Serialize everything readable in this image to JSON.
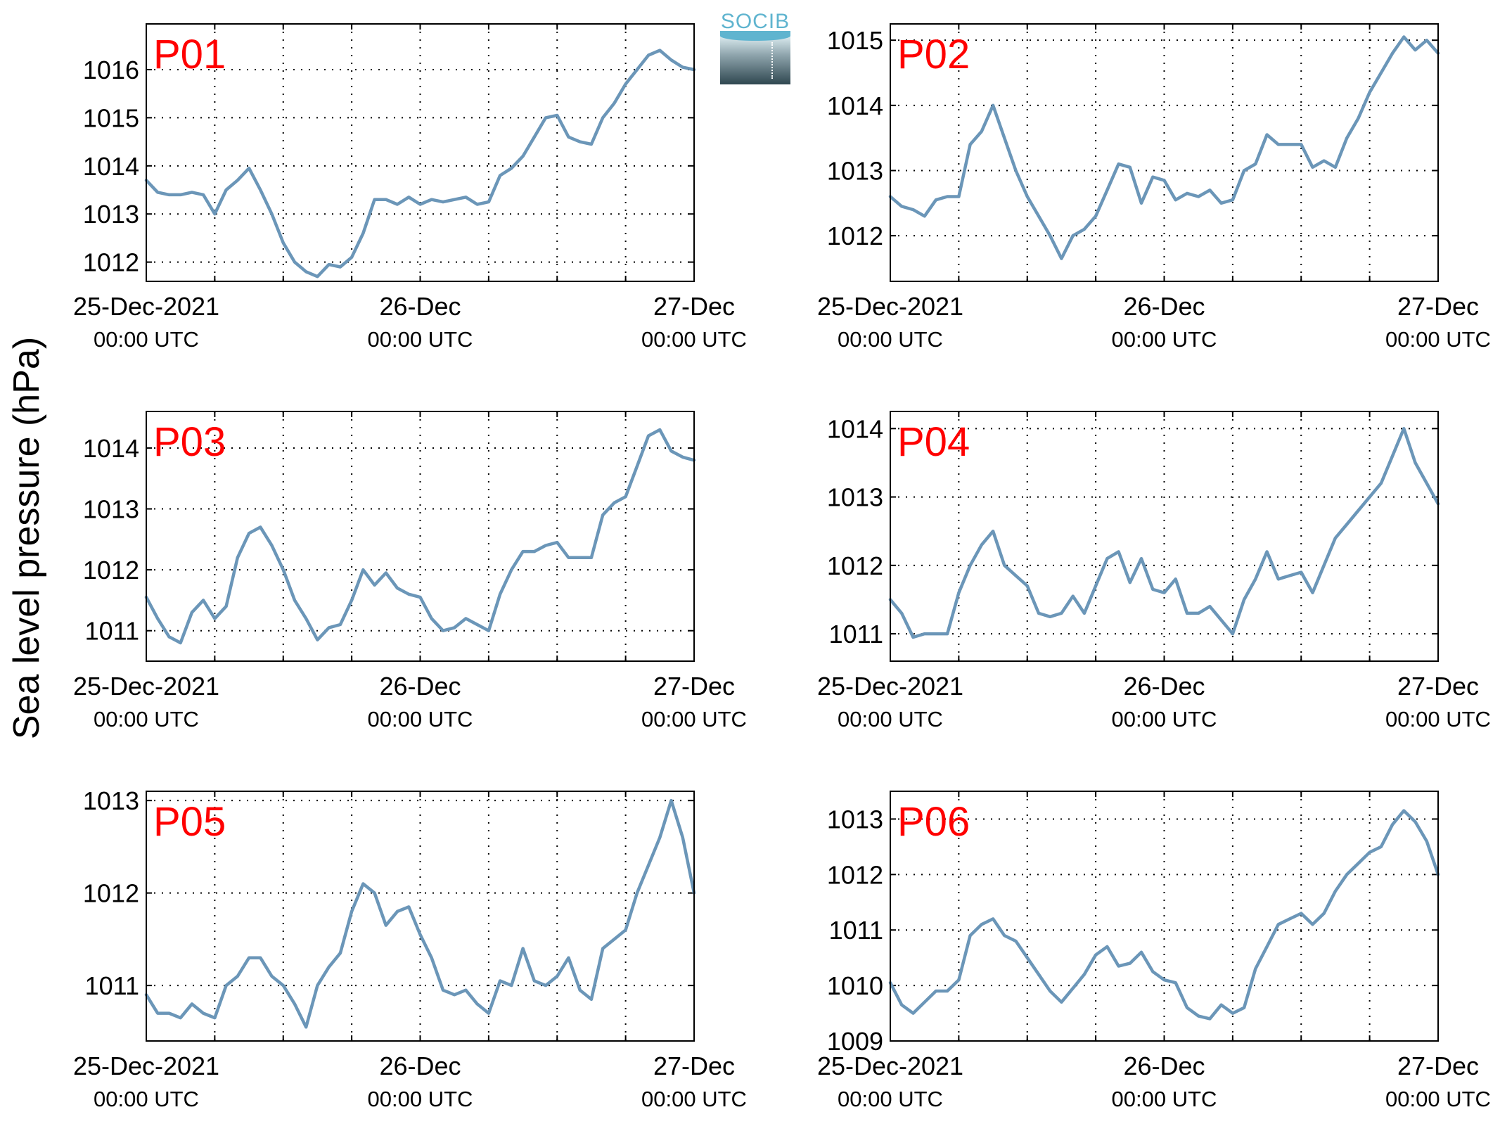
{
  "ylabel": "Sea level pressure (hPa)",
  "logo_text": "SOCIB",
  "colors": {
    "line": "#6b96b8",
    "panel_label": "#ff0000",
    "axis": "#000000",
    "grid": "#000000"
  },
  "chart_data": [
    {
      "type": "line",
      "title": "P01",
      "xlim": [
        0,
        48
      ],
      "xticks": [
        {
          "x": 0,
          "date": "25-Dec-2021",
          "time": "00:00 UTC"
        },
        {
          "x": 24,
          "date": "26-Dec",
          "time": "00:00 UTC"
        },
        {
          "x": 48,
          "date": "27-Dec",
          "time": "00:00 UTC"
        }
      ],
      "xgrid": [
        6,
        12,
        18,
        24,
        30,
        36,
        42
      ],
      "ylim": [
        1011.6,
        1016.95
      ],
      "yticks": [
        1012,
        1013,
        1014,
        1015,
        1016
      ],
      "x": [
        0,
        1,
        2,
        3,
        4,
        5,
        6,
        7,
        8,
        9,
        10,
        11,
        12,
        13,
        14,
        15,
        16,
        17,
        18,
        19,
        20,
        21,
        22,
        23,
        24,
        25,
        26,
        27,
        28,
        29,
        30,
        31,
        32,
        33,
        34,
        35,
        36,
        37,
        38,
        39,
        40,
        41,
        42,
        43,
        44,
        45,
        46,
        47,
        48
      ],
      "y": [
        1013.7,
        1013.45,
        1013.4,
        1013.4,
        1013.45,
        1013.4,
        1013.0,
        1013.5,
        1013.7,
        1013.95,
        1013.5,
        1013.0,
        1012.4,
        1012.0,
        1011.8,
        1011.7,
        1011.95,
        1011.9,
        1012.1,
        1012.6,
        1013.3,
        1013.3,
        1013.2,
        1013.35,
        1013.2,
        1013.3,
        1013.25,
        1013.3,
        1013.35,
        1013.2,
        1013.25,
        1013.8,
        1013.95,
        1014.2,
        1014.6,
        1015.0,
        1015.05,
        1014.6,
        1014.5,
        1014.45,
        1015.0,
        1015.3,
        1015.7,
        1016.0,
        1016.3,
        1016.4,
        1016.2,
        1016.05,
        1016.0
      ]
    },
    {
      "type": "line",
      "title": "P02",
      "xlim": [
        0,
        48
      ],
      "xticks": [
        {
          "x": 0,
          "date": "25-Dec-2021",
          "time": "00:00 UTC"
        },
        {
          "x": 24,
          "date": "26-Dec",
          "time": "00:00 UTC"
        },
        {
          "x": 48,
          "date": "27-Dec",
          "time": "00:00 UTC"
        }
      ],
      "xgrid": [
        6,
        12,
        18,
        24,
        30,
        36,
        42
      ],
      "ylim": [
        1011.3,
        1015.25
      ],
      "yticks": [
        1012,
        1013,
        1014,
        1015
      ],
      "x": [
        0,
        1,
        2,
        3,
        4,
        5,
        6,
        7,
        8,
        9,
        10,
        11,
        12,
        13,
        14,
        15,
        16,
        17,
        18,
        19,
        20,
        21,
        22,
        23,
        24,
        25,
        26,
        27,
        28,
        29,
        30,
        31,
        32,
        33,
        34,
        35,
        36,
        37,
        38,
        39,
        40,
        41,
        42,
        43,
        44,
        45,
        46,
        47,
        48
      ],
      "y": [
        1012.6,
        1012.45,
        1012.4,
        1012.3,
        1012.55,
        1012.6,
        1012.6,
        1013.4,
        1013.6,
        1014.0,
        1013.5,
        1013.0,
        1012.6,
        1012.3,
        1012.0,
        1011.65,
        1012.0,
        1012.1,
        1012.3,
        1012.7,
        1013.1,
        1013.05,
        1012.5,
        1012.9,
        1012.85,
        1012.55,
        1012.65,
        1012.6,
        1012.7,
        1012.5,
        1012.55,
        1013.0,
        1013.1,
        1013.55,
        1013.4,
        1013.4,
        1013.4,
        1013.05,
        1013.15,
        1013.05,
        1013.5,
        1013.8,
        1014.2,
        1014.5,
        1014.8,
        1015.05,
        1014.85,
        1015.0,
        1014.8
      ]
    },
    {
      "type": "line",
      "title": "P03",
      "xlim": [
        0,
        48
      ],
      "xticks": [
        {
          "x": 0,
          "date": "25-Dec-2021",
          "time": "00:00 UTC"
        },
        {
          "x": 24,
          "date": "26-Dec",
          "time": "00:00 UTC"
        },
        {
          "x": 48,
          "date": "27-Dec",
          "time": "00:00 UTC"
        }
      ],
      "xgrid": [
        6,
        12,
        18,
        24,
        30,
        36,
        42
      ],
      "ylim": [
        1010.5,
        1014.6
      ],
      "yticks": [
        1011,
        1012,
        1013,
        1014
      ],
      "x": [
        0,
        1,
        2,
        3,
        4,
        5,
        6,
        7,
        8,
        9,
        10,
        11,
        12,
        13,
        14,
        15,
        16,
        17,
        18,
        19,
        20,
        21,
        22,
        23,
        24,
        25,
        26,
        27,
        28,
        29,
        30,
        31,
        32,
        33,
        34,
        35,
        36,
        37,
        38,
        39,
        40,
        41,
        42,
        43,
        44,
        45,
        46,
        47,
        48
      ],
      "y": [
        1011.55,
        1011.2,
        1010.9,
        1010.8,
        1011.3,
        1011.5,
        1011.2,
        1011.4,
        1012.2,
        1012.6,
        1012.7,
        1012.4,
        1012.0,
        1011.5,
        1011.2,
        1010.85,
        1011.05,
        1011.1,
        1011.5,
        1012.0,
        1011.75,
        1011.95,
        1011.7,
        1011.6,
        1011.55,
        1011.2,
        1011.0,
        1011.05,
        1011.2,
        1011.1,
        1011.0,
        1011.6,
        1012.0,
        1012.3,
        1012.3,
        1012.4,
        1012.45,
        1012.2,
        1012.2,
        1012.2,
        1012.9,
        1013.1,
        1013.2,
        1013.7,
        1014.2,
        1014.3,
        1013.95,
        1013.85,
        1013.8
      ]
    },
    {
      "type": "line",
      "title": "P04",
      "xlim": [
        0,
        48
      ],
      "xticks": [
        {
          "x": 0,
          "date": "25-Dec-2021",
          "time": "00:00 UTC"
        },
        {
          "x": 24,
          "date": "26-Dec",
          "time": "00:00 UTC"
        },
        {
          "x": 48,
          "date": "27-Dec",
          "time": "00:00 UTC"
        }
      ],
      "xgrid": [
        6,
        12,
        18,
        24,
        30,
        36,
        42
      ],
      "ylim": [
        1010.6,
        1014.25
      ],
      "yticks": [
        1011,
        1012,
        1013,
        1014
      ],
      "x": [
        0,
        1,
        2,
        3,
        4,
        5,
        6,
        7,
        8,
        9,
        10,
        11,
        12,
        13,
        14,
        15,
        16,
        17,
        18,
        19,
        20,
        21,
        22,
        23,
        24,
        25,
        26,
        27,
        28,
        29,
        30,
        31,
        32,
        33,
        34,
        35,
        36,
        37,
        38,
        39,
        40,
        41,
        42,
        43,
        44,
        45,
        46,
        47,
        48
      ],
      "y": [
        1011.5,
        1011.3,
        1010.95,
        1011.0,
        1011.0,
        1011.0,
        1011.6,
        1012.0,
        1012.3,
        1012.5,
        1012.0,
        1011.85,
        1011.7,
        1011.3,
        1011.25,
        1011.3,
        1011.55,
        1011.3,
        1011.7,
        1012.1,
        1012.2,
        1011.75,
        1012.1,
        1011.65,
        1011.6,
        1011.8,
        1011.3,
        1011.3,
        1011.4,
        1011.2,
        1011.0,
        1011.5,
        1011.8,
        1012.2,
        1011.8,
        1011.85,
        1011.9,
        1011.6,
        1012.0,
        1012.4,
        1012.6,
        1012.8,
        1013.0,
        1013.2,
        1013.6,
        1014.0,
        1013.5,
        1013.2,
        1012.9
      ]
    },
    {
      "type": "line",
      "title": "P05",
      "xlim": [
        0,
        48
      ],
      "xticks": [
        {
          "x": 0,
          "date": "25-Dec-2021",
          "time": "00:00 UTC"
        },
        {
          "x": 24,
          "date": "26-Dec",
          "time": "00:00 UTC"
        },
        {
          "x": 48,
          "date": "27-Dec",
          "time": "00:00 UTC"
        }
      ],
      "xgrid": [
        6,
        12,
        18,
        24,
        30,
        36,
        42
      ],
      "ylim": [
        1010.4,
        1013.1
      ],
      "yticks": [
        1011,
        1012,
        1013
      ],
      "x": [
        0,
        1,
        2,
        3,
        4,
        5,
        6,
        7,
        8,
        9,
        10,
        11,
        12,
        13,
        14,
        15,
        16,
        17,
        18,
        19,
        20,
        21,
        22,
        23,
        24,
        25,
        26,
        27,
        28,
        29,
        30,
        31,
        32,
        33,
        34,
        35,
        36,
        37,
        38,
        39,
        40,
        41,
        42,
        43,
        44,
        45,
        46,
        47,
        48
      ],
      "y": [
        1010.9,
        1010.7,
        1010.7,
        1010.65,
        1010.8,
        1010.7,
        1010.65,
        1011.0,
        1011.1,
        1011.3,
        1011.3,
        1011.1,
        1011.0,
        1010.8,
        1010.55,
        1011.0,
        1011.2,
        1011.35,
        1011.8,
        1012.1,
        1012.0,
        1011.65,
        1011.8,
        1011.85,
        1011.55,
        1011.3,
        1010.95,
        1010.9,
        1010.95,
        1010.8,
        1010.7,
        1011.05,
        1011.0,
        1011.4,
        1011.05,
        1011.0,
        1011.1,
        1011.3,
        1010.95,
        1010.85,
        1011.4,
        1011.5,
        1011.6,
        1012.0,
        1012.3,
        1012.6,
        1013.0,
        1012.6,
        1012.0
      ]
    },
    {
      "type": "line",
      "title": "P06",
      "xlim": [
        0,
        48
      ],
      "xticks": [
        {
          "x": 0,
          "date": "25-Dec-2021",
          "time": "00:00 UTC"
        },
        {
          "x": 24,
          "date": "26-Dec",
          "time": "00:00 UTC"
        },
        {
          "x": 48,
          "date": "27-Dec",
          "time": "00:00 UTC"
        }
      ],
      "xgrid": [
        6,
        12,
        18,
        24,
        30,
        36,
        42
      ],
      "ylim": [
        1009.0,
        1013.5
      ],
      "yticks": [
        1009,
        1010,
        1011,
        1012,
        1013
      ],
      "x": [
        0,
        1,
        2,
        3,
        4,
        5,
        6,
        7,
        8,
        9,
        10,
        11,
        12,
        13,
        14,
        15,
        16,
        17,
        18,
        19,
        20,
        21,
        22,
        23,
        24,
        25,
        26,
        27,
        28,
        29,
        30,
        31,
        32,
        33,
        34,
        35,
        36,
        37,
        38,
        39,
        40,
        41,
        42,
        43,
        44,
        45,
        46,
        47,
        48
      ],
      "y": [
        1010.05,
        1009.65,
        1009.5,
        1009.7,
        1009.9,
        1009.9,
        1010.1,
        1010.9,
        1011.1,
        1011.2,
        1010.9,
        1010.8,
        1010.5,
        1010.2,
        1009.9,
        1009.7,
        1009.95,
        1010.2,
        1010.55,
        1010.7,
        1010.35,
        1010.4,
        1010.6,
        1010.25,
        1010.1,
        1010.05,
        1009.6,
        1009.45,
        1009.4,
        1009.65,
        1009.5,
        1009.6,
        1010.3,
        1010.7,
        1011.1,
        1011.2,
        1011.3,
        1011.1,
        1011.3,
        1011.7,
        1012.0,
        1012.2,
        1012.4,
        1012.5,
        1012.9,
        1013.15,
        1012.95,
        1012.6,
        1012.0
      ]
    }
  ]
}
